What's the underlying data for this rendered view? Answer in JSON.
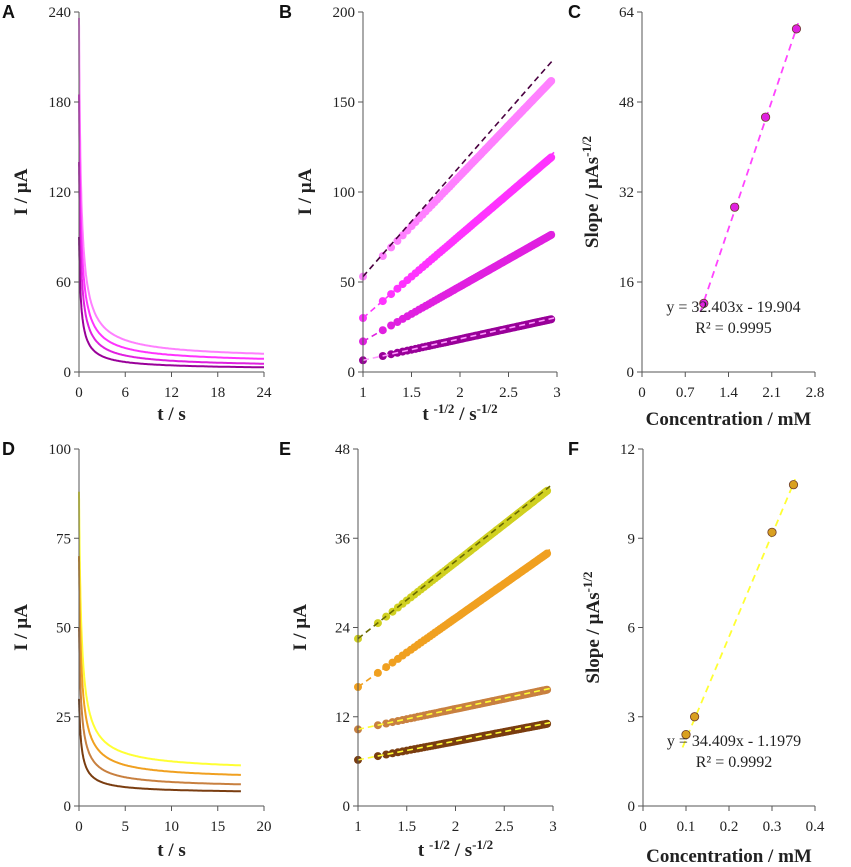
{
  "colors": {
    "axis": "#555555",
    "pink": [
      "#ff80ff",
      "#ff33ff",
      "#e020e0",
      "#990099"
    ],
    "yellow": [
      "#ffff33",
      "#f0a020",
      "#c88040",
      "#7a3d10"
    ],
    "fitDark": "#4a0040",
    "fitPink": "#ff44ff",
    "fitYellow": "#ffff33",
    "markerYellow": "#d9a020",
    "markerPink": "#e020e0"
  },
  "chart_data": [
    {
      "id": "A",
      "letter": "A",
      "type": "line",
      "xlabel": "t / s",
      "ylabel": "I / µA",
      "xlim": [
        0,
        24
      ],
      "ylim": [
        0,
        240
      ],
      "xticks": [
        "0",
        "6",
        "12",
        "18",
        "24"
      ],
      "yticks": [
        "0",
        "60",
        "120",
        "180",
        "240"
      ],
      "series": [
        {
          "name": "c1",
          "color": "#ff80ff",
          "peak": 236,
          "plateau": 8,
          "t_end": 24
        },
        {
          "name": "c2",
          "color": "#ff33ff",
          "peak": 185,
          "plateau": 5.5,
          "t_end": 24
        },
        {
          "name": "c3",
          "color": "#e020e0",
          "peak": 140,
          "plateau": 3,
          "t_end": 24
        },
        {
          "name": "c4",
          "color": "#990099",
          "peak": 90,
          "plateau": 1.5,
          "t_end": 24
        }
      ]
    },
    {
      "id": "B",
      "letter": "B",
      "type": "scatter",
      "xlabel": "t -1/2 / s-1/2",
      "ylabel": "I / µA",
      "xlim": [
        1,
        3
      ],
      "ylim": [
        0,
        200
      ],
      "xticks": [
        "1",
        "1.5",
        "2",
        "2.5",
        "3"
      ],
      "yticks": [
        "0",
        "50",
        "100",
        "150",
        "200"
      ],
      "series": [
        {
          "name": "c1",
          "color": "#ff80ff",
          "start": 53,
          "end": 165,
          "fit_end": 174,
          "fit_color": "#4a0040"
        },
        {
          "name": "c2",
          "color": "#ff33ff",
          "start": 30,
          "end": 122,
          "fit_end": 122,
          "fit_color": "#ff33ff"
        },
        {
          "name": "c3",
          "color": "#e020e0",
          "start": 17,
          "end": 78,
          "fit_end": 78,
          "fit_color": "#e020e0"
        },
        {
          "name": "c4",
          "color": "#990099",
          "start": 6.5,
          "end": 30,
          "fit_end": 30,
          "fit_color": "#ff99ff"
        }
      ]
    },
    {
      "id": "C",
      "letter": "C",
      "type": "scatter",
      "xlabel": "Concentration / mM",
      "ylabel": "Slope / µAs-1/2",
      "xlim": [
        0,
        2.8
      ],
      "ylim": [
        0,
        64
      ],
      "xticks": [
        "0",
        "0.7",
        "1.4",
        "2.1",
        "2.8"
      ],
      "yticks": [
        "0",
        "16",
        "32",
        "48",
        "64"
      ],
      "x": [
        1.0,
        1.5,
        2.0,
        2.5
      ],
      "y": [
        12.2,
        29.3,
        45.3,
        61.0
      ],
      "marker_color": "#e020e0",
      "fit_color": "#ff44ff",
      "fit_slope": 32.403,
      "fit_intercept": -19.904,
      "equation": "y = 32.403x - 19.904",
      "r2": "R² = 0.9995"
    },
    {
      "id": "D",
      "letter": "D",
      "type": "line",
      "xlabel": "t / s",
      "ylabel": "I / µA",
      "xlim": [
        0,
        20
      ],
      "ylim": [
        0,
        100
      ],
      "xticks": [
        "0",
        "5",
        "10",
        "15",
        "20"
      ],
      "yticks": [
        "0",
        "25",
        "50",
        "75",
        "100"
      ],
      "series": [
        {
          "name": "c1",
          "color": "#ffff33",
          "peak": 88,
          "plateau": 9.5,
          "t_end": 17.5
        },
        {
          "name": "c2",
          "color": "#f0a020",
          "peak": 70,
          "plateau": 7.2,
          "t_end": 17.5
        },
        {
          "name": "c3",
          "color": "#c88040",
          "peak": 50,
          "plateau": 5,
          "t_end": 17.5
        },
        {
          "name": "c4",
          "color": "#7a3d10",
          "peak": 30,
          "plateau": 3.5,
          "t_end": 17.5
        }
      ]
    },
    {
      "id": "E",
      "letter": "E",
      "type": "scatter",
      "xlabel": "t -1/2 / s-1/2",
      "ylabel": "I / µA",
      "xlim": [
        1,
        3
      ],
      "ylim": [
        0,
        48
      ],
      "xticks": [
        "1",
        "1.5",
        "2",
        "2.5",
        "3"
      ],
      "yticks": [
        "0",
        "12",
        "24",
        "36",
        "48"
      ],
      "series": [
        {
          "name": "c1",
          "color": "#d0d020",
          "start": 22.5,
          "end": 43,
          "fit_end": 43,
          "fit_color": "#6a6a00"
        },
        {
          "name": "c2",
          "color": "#f0a020",
          "start": 16,
          "end": 34.5,
          "fit_end": 34.5,
          "fit_color": "#f0a020"
        },
        {
          "name": "c3",
          "color": "#c88040",
          "start": 10.3,
          "end": 15.8,
          "fit_end": 15.8,
          "fit_color": "#ffff33"
        },
        {
          "name": "c4",
          "color": "#7a3d10",
          "start": 6.2,
          "end": 11.2,
          "fit_end": 11.2,
          "fit_color": "#ffff33"
        }
      ]
    },
    {
      "id": "F",
      "letter": "F",
      "type": "scatter",
      "xlabel": "Concentration / mM",
      "ylabel": "Slope / µAs-1/2",
      "xlim": [
        0,
        0.4
      ],
      "ylim": [
        0,
        12
      ],
      "xticks": [
        "0",
        "0.1",
        "0.2",
        "0.3",
        "0.4"
      ],
      "yticks": [
        "0",
        "3",
        "6",
        "9",
        "12"
      ],
      "x": [
        0.1,
        0.12,
        0.3,
        0.35
      ],
      "y": [
        2.4,
        3.0,
        9.2,
        10.8
      ],
      "marker_color": "#d9a020",
      "fit_color": "#ffff33",
      "fit_slope": 34.409,
      "fit_intercept": -1.1979,
      "equation": "y = 34.409x - 1.1979",
      "r2": "R² = 0.9992"
    }
  ]
}
